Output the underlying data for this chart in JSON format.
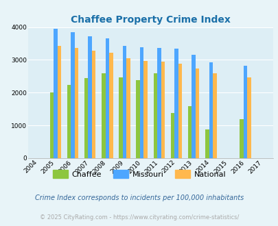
{
  "title": "Chaffee Property Crime Index",
  "subtitle": "Crime Index corresponds to incidents per 100,000 inhabitants",
  "footer": "© 2025 CityRating.com - https://www.cityrating.com/crime-statistics/",
  "years": [
    2004,
    2005,
    2006,
    2007,
    2008,
    2009,
    2010,
    2011,
    2012,
    2013,
    2014,
    2015,
    2016,
    2017
  ],
  "chaffee": [
    null,
    2000,
    2230,
    2450,
    2590,
    2470,
    2390,
    2590,
    1370,
    1580,
    880,
    null,
    1200,
    null
  ],
  "missouri": [
    null,
    3960,
    3840,
    3730,
    3660,
    3420,
    3380,
    3360,
    3350,
    3150,
    2930,
    null,
    2820,
    null
  ],
  "national": [
    null,
    3430,
    3360,
    3290,
    3220,
    3060,
    2960,
    2950,
    2890,
    2740,
    2600,
    null,
    2470,
    null
  ],
  "bar_color_chaffee": "#8dc63f",
  "bar_color_missouri": "#4da6ff",
  "bar_color_national": "#ffb84d",
  "bg_color": "#e8f4f8",
  "title_color": "#1a6fa8",
  "subtitle_color": "#336699",
  "footer_color": "#aaaaaa",
  "ylim": [
    0,
    4000
  ],
  "yticks": [
    0,
    1000,
    2000,
    3000,
    4000
  ],
  "bar_width": 0.22,
  "grid_color": "#ffffff",
  "plot_bg": "#ddeef5"
}
